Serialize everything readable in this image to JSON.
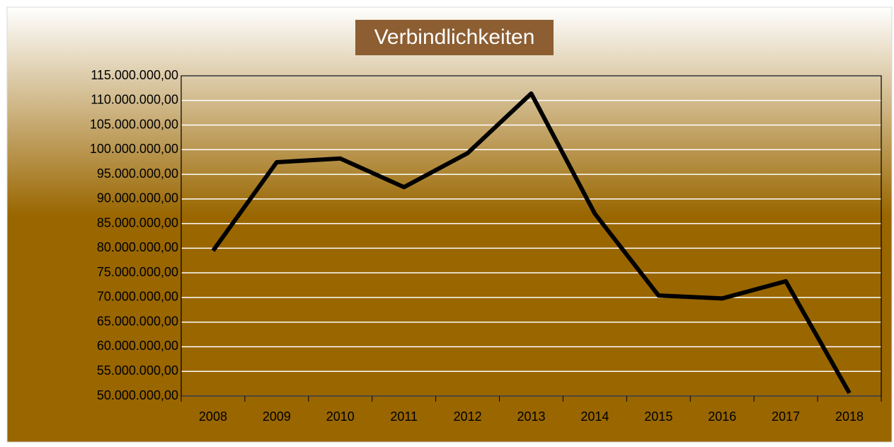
{
  "chart_data": {
    "type": "line",
    "title": "Verbindlichkeiten",
    "categories": [
      "2008",
      "2009",
      "2010",
      "2011",
      "2012",
      "2013",
      "2014",
      "2015",
      "2016",
      "2017",
      "2018"
    ],
    "series": [
      {
        "name": "Verbindlichkeiten",
        "color": "#000000",
        "values": [
          79500000,
          97450000,
          98200000,
          92400000,
          99300000,
          111400000,
          87000000,
          70400000,
          69800000,
          73300000,
          50600000
        ]
      }
    ],
    "ylim": [
      50000000,
      115000000
    ],
    "yticks": [
      {
        "value": 50000000,
        "label": "50.000.000,00"
      },
      {
        "value": 55000000,
        "label": "55.000.000,00"
      },
      {
        "value": 60000000,
        "label": "60.000.000,00"
      },
      {
        "value": 65000000,
        "label": "65.000.000,00"
      },
      {
        "value": 70000000,
        "label": "70.000.000,00"
      },
      {
        "value": 75000000,
        "label": "75.000.000,00"
      },
      {
        "value": 80000000,
        "label": "80.000.000,00"
      },
      {
        "value": 85000000,
        "label": "85.000.000,00"
      },
      {
        "value": 90000000,
        "label": "90.000.000,00"
      },
      {
        "value": 95000000,
        "label": "95.000.000,00"
      },
      {
        "value": 100000000,
        "label": "100.000.000,00"
      },
      {
        "value": 105000000,
        "label": "105.000.000,00"
      },
      {
        "value": 110000000,
        "label": "110.000.000,00"
      },
      {
        "value": 115000000,
        "label": "115.000.000,00"
      }
    ],
    "grid": true
  }
}
